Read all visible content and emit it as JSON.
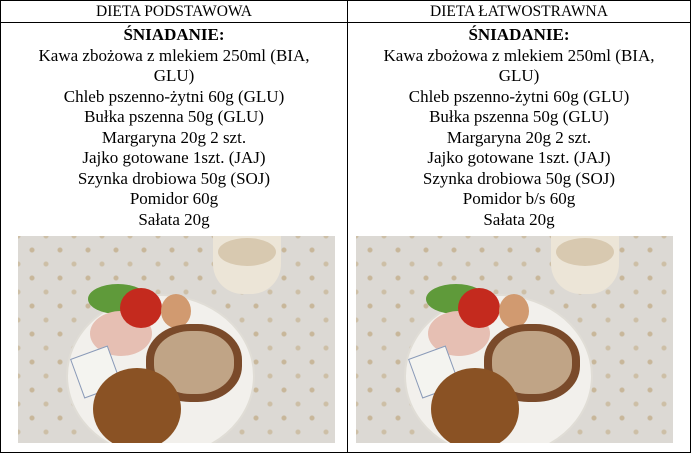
{
  "columns": [
    {
      "header": "DIETA PODSTAWOWA",
      "meal": "ŚNIADANIE:",
      "items": [
        "Kawa zbożowa z mlekiem 250ml (BIA,",
        "GLU)",
        "Chleb pszenno-żytni 60g (GLU)",
        "Bułka pszenna 50g (GLU)",
        "Margaryna 20g 2 szt.",
        "Jajko gotowane 1szt. (JAJ)",
        "Szynka drobiowa 50g (SOJ)",
        "Pomidor 60g",
        "Sałata 20g"
      ]
    },
    {
      "header": "DIETA ŁATWOSTRAWNA",
      "meal": "ŚNIADANIE:",
      "items": [
        "Kawa zbożowa z mlekiem 250ml (BIA,",
        "GLU)",
        "Chleb pszenno-żytni 60g (GLU)",
        "Bułka pszenna 50g (GLU)",
        "Margaryna 20g 2 szt.",
        "Jajko gotowane 1szt. (JAJ)",
        "Szynka drobiowa 50g (SOJ)",
        "Pomidor b/s 60g",
        "Sałata 20g"
      ]
    }
  ]
}
